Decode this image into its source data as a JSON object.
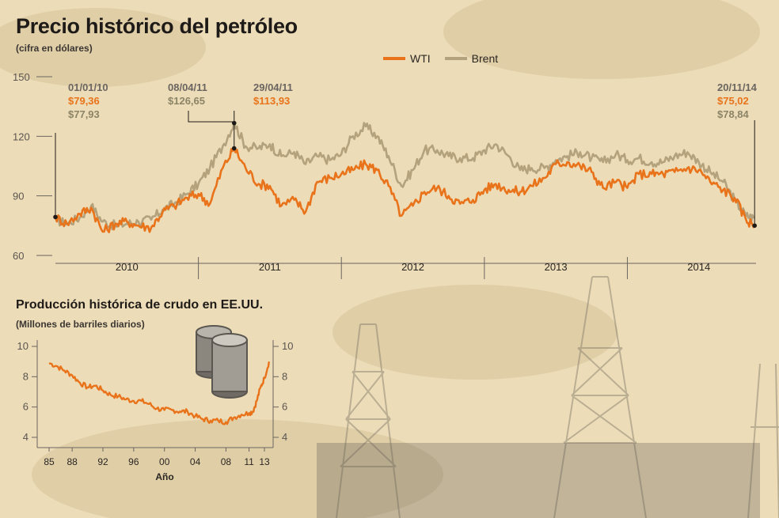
{
  "title": "Precio histórico del petróleo",
  "subtitle": "(cifra en dólares)",
  "colors": {
    "wti": "#e8731a",
    "brent": "#b3a27b",
    "background": "#eddcb8",
    "text": "#1d1a17"
  },
  "chart_data": [
    {
      "type": "line",
      "title": "Precio histórico del petróleo",
      "subtitle": "(cifra en dólares)",
      "ylim": [
        60,
        150
      ],
      "yticks": [
        "150",
        "120",
        "90",
        "60"
      ],
      "xcategories": [
        "2010",
        "2011",
        "2012",
        "2013",
        "2014"
      ],
      "xlim": [
        2010.0,
        2014.9
      ],
      "legend": "top-center",
      "series": [
        {
          "name": "WTI",
          "color": "#e8731a",
          "x": [
            2010.0,
            2010.08,
            2010.17,
            2010.25,
            2010.33,
            2010.42,
            2010.5,
            2010.58,
            2010.67,
            2010.75,
            2010.83,
            2010.92,
            2011.0,
            2011.08,
            2011.17,
            2011.25,
            2011.33,
            2011.42,
            2011.5,
            2011.58,
            2011.67,
            2011.75,
            2011.83,
            2011.92,
            2012.0,
            2012.08,
            2012.17,
            2012.25,
            2012.33,
            2012.42,
            2012.5,
            2012.58,
            2012.67,
            2012.75,
            2012.83,
            2012.92,
            2013.0,
            2013.08,
            2013.17,
            2013.25,
            2013.33,
            2013.42,
            2013.5,
            2013.58,
            2013.67,
            2013.75,
            2013.83,
            2013.92,
            2014.0,
            2014.08,
            2014.17,
            2014.25,
            2014.33,
            2014.42,
            2014.5,
            2014.58,
            2014.67,
            2014.75,
            2014.83,
            2014.89
          ],
          "y": [
            79.36,
            76,
            81,
            84,
            72,
            76,
            77,
            75,
            74,
            82,
            85,
            89,
            91,
            86,
            104,
            113.93,
            104,
            96,
            95,
            85,
            88,
            82,
            97,
            99,
            101,
            103,
            106,
            103,
            95,
            80,
            85,
            92,
            94,
            90,
            86,
            88,
            93,
            96,
            93,
            92,
            95,
            99,
            106,
            107,
            105,
            102,
            94,
            97,
            94,
            101,
            101,
            101,
            102,
            104,
            103,
            97,
            93,
            89,
            78,
            75.02
          ]
        },
        {
          "name": "Brent",
          "color": "#b3a27b",
          "x": [
            2010.0,
            2010.08,
            2010.17,
            2010.25,
            2010.33,
            2010.42,
            2010.5,
            2010.58,
            2010.67,
            2010.75,
            2010.83,
            2010.92,
            2011.0,
            2011.08,
            2011.17,
            2011.25,
            2011.33,
            2011.42,
            2011.5,
            2011.58,
            2011.67,
            2011.75,
            2011.83,
            2011.92,
            2012.0,
            2012.08,
            2012.17,
            2012.25,
            2012.33,
            2012.42,
            2012.5,
            2012.58,
            2012.67,
            2012.75,
            2012.83,
            2012.92,
            2013.0,
            2013.08,
            2013.17,
            2013.25,
            2013.33,
            2013.42,
            2013.5,
            2013.58,
            2013.67,
            2013.75,
            2013.83,
            2013.92,
            2014.0,
            2014.08,
            2014.17,
            2014.25,
            2014.33,
            2014.42,
            2014.5,
            2014.58,
            2014.67,
            2014.75,
            2014.83,
            2014.89
          ],
          "y": [
            77.93,
            76,
            79,
            85,
            77,
            75,
            76,
            77,
            78,
            83,
            86,
            91,
            96,
            104,
            115,
            126.65,
            115,
            114,
            116,
            110,
            112,
            106,
            110,
            108,
            111,
            120,
            125,
            120,
            110,
            95,
            103,
            113,
            113,
            110,
            109,
            109,
            113,
            116,
            110,
            103,
            104,
            104,
            108,
            110,
            112,
            109,
            107,
            111,
            108,
            109,
            107,
            107,
            110,
            112,
            107,
            102,
            97,
            88,
            80,
            78.84
          ]
        }
      ],
      "annotations": [
        {
          "date": "01/01/10",
          "wti": "$79,36",
          "brent": "$77,93"
        },
        {
          "date": "08/04/11",
          "brent": "$126,65"
        },
        {
          "date": "29/04/11",
          "wti": "$113,93"
        },
        {
          "date": "20/11/14",
          "wti": "$75,02",
          "brent": "$78,84"
        }
      ]
    },
    {
      "type": "line",
      "title": "Producción histórica de crudo en EE.UU.",
      "subtitle": "(Millones de barriles diarios)",
      "xlabel": "Año",
      "xticks": [
        "85",
        "88",
        "92",
        "96",
        "00",
        "04",
        "08",
        "11",
        "13"
      ],
      "ylim": [
        4,
        10
      ],
      "yticks": [
        "10",
        "8",
        "6",
        "4"
      ],
      "xlim": [
        1985,
        2013
      ],
      "series": [
        {
          "color": "#e8731a",
          "x": [
            1985,
            1986,
            1987,
            1988,
            1989,
            1990,
            1991,
            1992,
            1993,
            1994,
            1995,
            1996,
            1997,
            1998,
            1999,
            2000,
            2001,
            2002,
            2003,
            2004,
            2005,
            2006,
            2007,
            2008,
            2009,
            2010,
            2011,
            2011.5,
            2012,
            2012.5,
            2013,
            2013.6
          ],
          "y": [
            8.9,
            8.7,
            8.4,
            8.1,
            7.6,
            7.3,
            7.4,
            7.1,
            6.8,
            6.7,
            6.5,
            6.4,
            6.4,
            6.2,
            5.9,
            5.8,
            5.8,
            5.7,
            5.7,
            5.4,
            5.2,
            5.1,
            5.1,
            5.0,
            5.3,
            5.5,
            5.6,
            5.7,
            6.4,
            7.3,
            7.9,
            9.0
          ]
        }
      ]
    }
  ],
  "production": {
    "title": "Producción histórica de crudo en EE.UU.",
    "subtitle": "(Millones de barriles diarios)",
    "xlabel": "Año"
  }
}
